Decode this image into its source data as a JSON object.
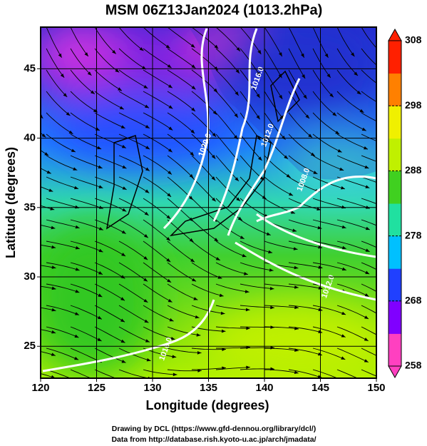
{
  "chart_data": {
    "type": "streamline",
    "title": "MSM 06Z13Jan2024 (1013.2hPa)",
    "xlabel": "Longitude (degrees)",
    "ylabel": "Latitude  (degrees)",
    "xlim": [
      120,
      150
    ],
    "ylim": [
      22.7,
      48
    ],
    "xticks": [
      120,
      125,
      130,
      135,
      140,
      145,
      150
    ],
    "yticks": [
      25,
      30,
      35,
      40,
      45
    ],
    "grid": true,
    "colorbar": {
      "lim": [
        258,
        308
      ],
      "ticks": [
        258,
        268,
        278,
        288,
        298,
        308
      ],
      "colors": [
        "#ff40c0",
        "#8000ff",
        "#2040ff",
        "#00c0ff",
        "#20e0a0",
        "#40d020",
        "#c0f000",
        "#f0f000",
        "#ff8000",
        "#ff2000"
      ]
    },
    "contour_labels": [
      {
        "text": "1020.0",
        "lon": 134.7,
        "lat": 39.5
      },
      {
        "text": "1016.0",
        "lon": 139.4,
        "lat": 44.3
      },
      {
        "text": "1012.0",
        "lon": 140.3,
        "lat": 40.2
      },
      {
        "text": "1008.0",
        "lon": 143.5,
        "lat": 37.0
      },
      {
        "text": "1012.0",
        "lon": 145.7,
        "lat": 29.3
      },
      {
        "text": "1016.0",
        "lon": 131.2,
        "lat": 24.8
      }
    ],
    "credits": [
      "Drawing by DCL (https://www.gfd-dennou.org/library/dcl/)",
      "Data from http://database.rish.kyoto-u.ac.jp/arch/jmadata/"
    ]
  }
}
